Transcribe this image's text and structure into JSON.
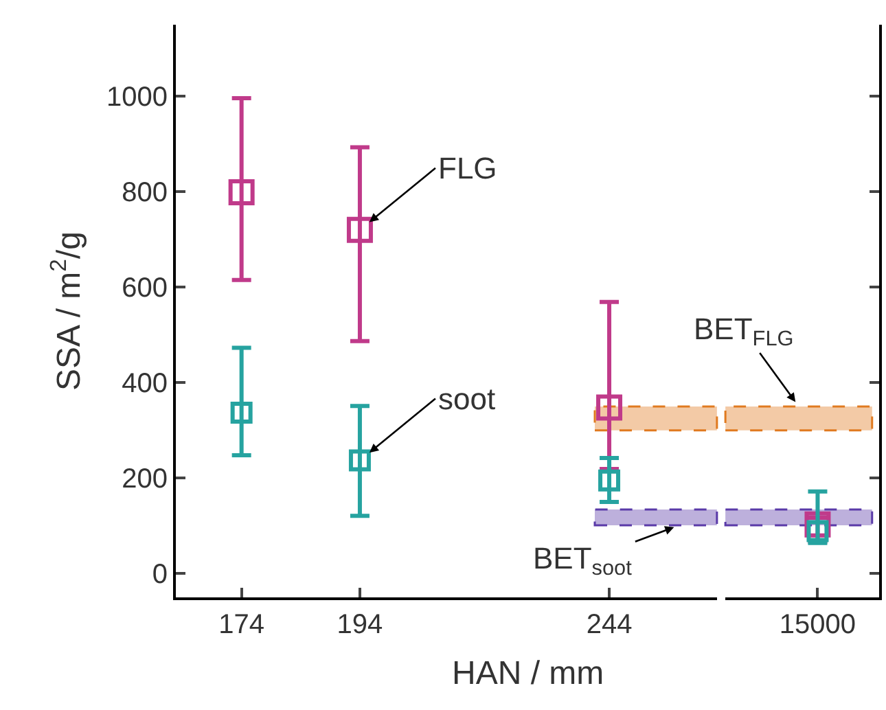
{
  "chart_data": [
    {
      "type": "scatter",
      "xlabel": "HAN / mm",
      "ylabel": "SSA / m$^{2}$/g",
      "log": "x",
      "xlim": [
        163.8,
        269.4
      ],
      "xticks": [
        174,
        194,
        244
      ],
      "ylim": [
        -50,
        1150
      ],
      "yticks": [
        0,
        200,
        400,
        600,
        800,
        1000
      ],
      "grid": false,
      "marker": "square",
      "series": [
        {
          "name": "FLG",
          "color": "#c03a8a",
          "x": [
            174,
            194,
            244
          ],
          "values": [
            799,
            720,
            348
          ],
          "errors": [
            [
              615,
              996
            ],
            [
              487,
              893
            ],
            [
              219,
              569
            ]
          ]
        },
        {
          "name": "soot",
          "color": "#26a3a0",
          "x": [
            174,
            194,
            244
          ],
          "values": [
            337,
            237,
            195
          ],
          "errors": [
            [
              248,
              473
            ],
            [
              121,
              351
            ],
            [
              150,
              242
            ]
          ]
        }
      ],
      "bands": [
        {
          "axis": "y",
          "from": 300,
          "to": 350,
          "color": "#e07a20"
        },
        {
          "axis": "y",
          "from": 101,
          "to": 134,
          "label": "BET$_{soot}$",
          "color": "#5a3aa8"
        }
      ]
    },
    {
      "type": "scatter",
      "categories": [
        "15000"
      ],
      "ylim": [
        -50,
        1150
      ],
      "yticks": [
        0,
        200,
        400,
        600,
        800,
        1000
      ],
      "tick_labels": "x",
      "grid": false,
      "marker": "square",
      "series": [
        {
          "color": "#c03a8a",
          "values": [
            103
          ],
          "errors": [
            [
              67,
              117
            ]
          ]
        },
        {
          "color": "#26a3a0",
          "values": [
            89
          ],
          "errors": [
            [
              64,
              172
            ]
          ]
        }
      ],
      "bands": [
        {
          "axis": "y",
          "from": 300,
          "to": 350,
          "label": "BET$_{FLG}$",
          "color": "#e07a20"
        },
        {
          "axis": "y",
          "from": 101,
          "to": 134,
          "color": "#5a3aa8"
        }
      ]
    }
  ]
}
